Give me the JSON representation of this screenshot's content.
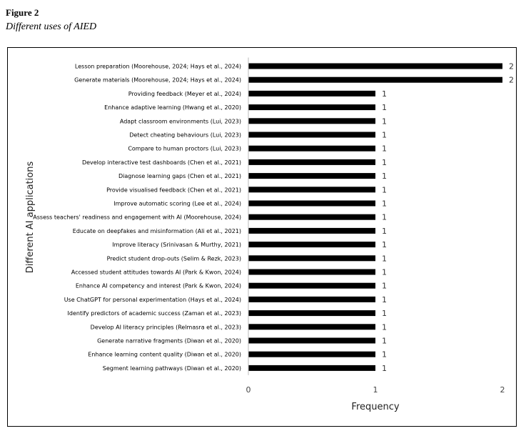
{
  "figure": {
    "label": "Figure 2",
    "caption": "Different uses of AIED"
  },
  "chart_data": {
    "type": "bar",
    "orientation": "horizontal",
    "xlabel": "Frequency",
    "ylabel": "Different AI applications",
    "xlim": [
      0,
      2
    ],
    "xticks": [
      "0",
      "1",
      "2"
    ],
    "grid": false,
    "legend": "none",
    "bar_color": "#000000",
    "categories": [
      "Lesson preparation (Moorehouse, 2024; Hays et al., 2024)",
      "Generate materials (Moorehouse, 2024; Hays et al., 2024)",
      "Providing feedback (Meyer et al., 2024)",
      "Enhance adaptive learning (Hwang et al., 2020)",
      "Adapt classroom environments (Lui, 2023)",
      "Detect cheating behaviours (Lui, 2023)",
      "Compare to human proctors (Lui, 2023)",
      "Develop interactive test dashboards (Chen et al., 2021)",
      "Diagnose learning gaps (Chen et al., 2021)",
      "Provide visualised feedback (Chen et al., 2021)",
      "Improve automatic scoring (Lee et al., 2024)",
      "Assess teachers' readiness and engagement with AI (Moorehouse, 2024)",
      "Educate on deepfakes and misinformation (Ali et al., 2021)",
      "Improve literacy (Srinivasan & Murthy, 2021)",
      "Predict student drop-outs (Selim & Rezk, 2023)",
      "Accessed student attitudes towards AI (Park & Kwon, 2024)",
      "Enhance AI competency and interest (Park & Kwon, 2024)",
      "Use ChatGPT for personal experimentation (Hays et al., 2024)",
      "Identify predictors of academic success (Zaman et al., 2023)",
      "Develop AI literacy principles (Relmasra et al., 2023)",
      "Generate narrative fragments (Diwan et al., 2020)",
      "Enhance learning content quality (Diwan et al., 2020)",
      "Segment learning pathways (Diwan et al., 2020)"
    ],
    "values": [
      2,
      2,
      1,
      1,
      1,
      1,
      1,
      1,
      1,
      1,
      1,
      1,
      1,
      1,
      1,
      1,
      1,
      1,
      1,
      1,
      1,
      1,
      1
    ],
    "data_labels": [
      "2",
      "2",
      "1",
      "1",
      "1",
      "1",
      "1",
      "1",
      "1",
      "1",
      "1",
      "1",
      "1",
      "1",
      "1",
      "1",
      "1",
      "1",
      "1",
      "1",
      "1",
      "1",
      "1"
    ]
  }
}
